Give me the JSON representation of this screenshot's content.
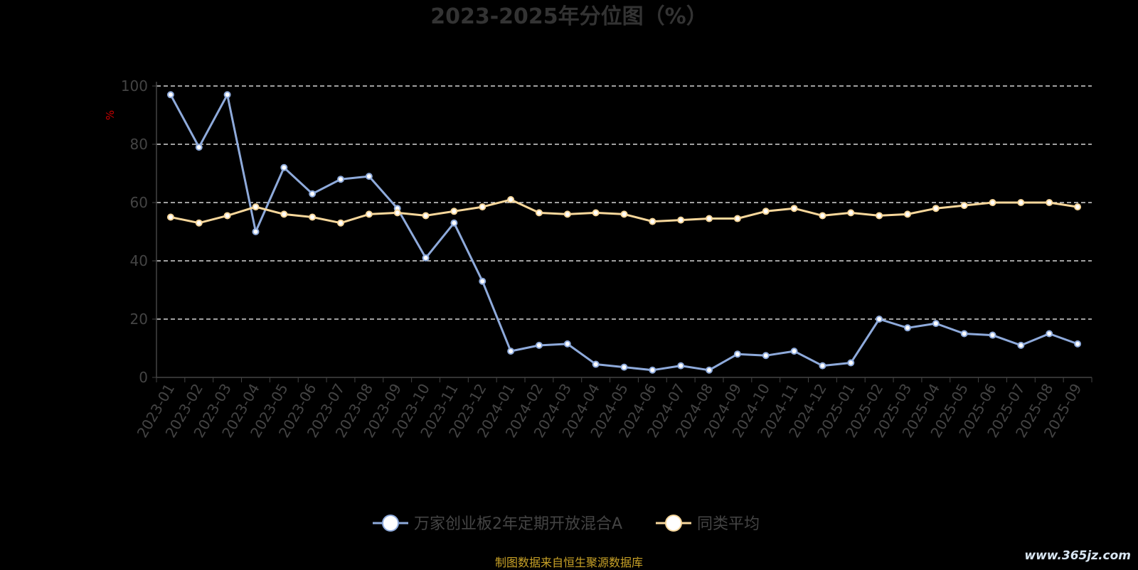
{
  "chart_data": {
    "type": "line",
    "title": "2023-2025年分位图（%）",
    "ylabel": "%",
    "xlabel": "",
    "ylim": [
      0,
      100
    ],
    "yticks": [
      0,
      20,
      40,
      60,
      80,
      100
    ],
    "grid": "horizontal dashed",
    "legend_position": "bottom",
    "categories": [
      "2023-01",
      "2023-02",
      "2023-03",
      "2023-04",
      "2023-05",
      "2023-06",
      "2023-07",
      "2023-08",
      "2023-09",
      "2023-10",
      "2023-11",
      "2023-12",
      "2024-01",
      "2024-02",
      "2024-03",
      "2024-04",
      "2024-05",
      "2024-06",
      "2024-07",
      "2024-08",
      "2024-09",
      "2024-10",
      "2024-11",
      "2024-12",
      "2025-01",
      "2025-02",
      "2025-03",
      "2025-04",
      "2025-05",
      "2025-06",
      "2025-07",
      "2025-08",
      "2025-09"
    ],
    "series": [
      {
        "name": "万家创业板2年定期开放混合A",
        "color": "#8eaadb",
        "values": [
          97,
          79,
          97,
          50,
          72,
          63,
          68,
          69,
          58,
          41,
          53,
          33,
          9,
          11,
          11.5,
          4.5,
          3.5,
          2.5,
          4,
          2.5,
          8,
          7.5,
          9,
          4,
          5,
          20,
          17,
          18.5,
          15,
          14.5,
          11,
          15,
          11.5
        ]
      },
      {
        "name": "同类平均",
        "color": "#f7d79b",
        "values": [
          55,
          53,
          55.5,
          58.5,
          56,
          55,
          53,
          56,
          56.5,
          55.5,
          57,
          58.5,
          61,
          56.5,
          56,
          56.5,
          56,
          53.5,
          54,
          54.5,
          54.5,
          57,
          58,
          55.5,
          56.5,
          55.5,
          56,
          58,
          59,
          60,
          60,
          60,
          58.5
        ]
      }
    ]
  },
  "footer": {
    "source_note": "制图数据来自恒生聚源数据库",
    "watermark": "www.365jz.com"
  },
  "colors": {
    "background": "#000000",
    "title": "#333333",
    "axis_text": "#444444",
    "ylabel": "#cc0000",
    "gridline": "#ffffff",
    "source_note": "#c9a227"
  }
}
